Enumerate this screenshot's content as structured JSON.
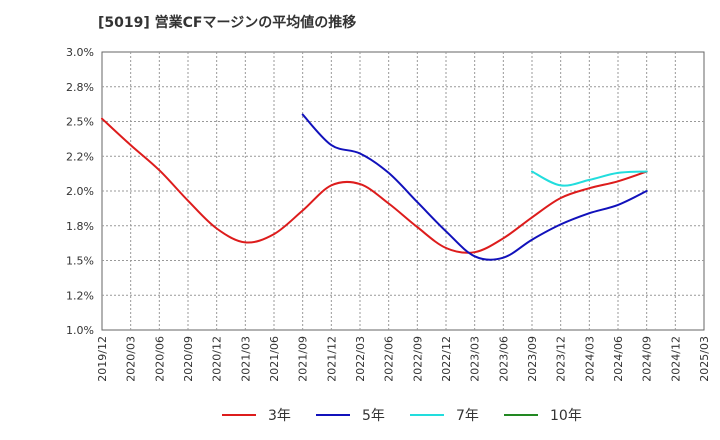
{
  "title": "[5019]  営業CFマージンの平均値の推移",
  "chart_data": {
    "type": "line",
    "title": "[5019]  営業CFマージンの平均値の推移",
    "xlabel": "",
    "ylabel": "",
    "ylim": [
      1.0,
      3.0
    ],
    "grid": true,
    "legend_position": "bottom",
    "y_ticks": [
      "1.0%",
      "1.2%",
      "1.5%",
      "1.8%",
      "2.0%",
      "2.2%",
      "2.5%",
      "2.8%",
      "3.0%"
    ],
    "y_tick_values": [
      1.0,
      1.25,
      1.5,
      1.75,
      2.0,
      2.25,
      2.5,
      2.75,
      3.0
    ],
    "x_ticks": [
      "2019/12",
      "2020/03",
      "2020/06",
      "2020/09",
      "2020/12",
      "2021/03",
      "2021/06",
      "2021/09",
      "2021/12",
      "2022/03",
      "2022/06",
      "2022/09",
      "2022/12",
      "2023/03",
      "2023/06",
      "2023/09",
      "2023/12",
      "2024/03",
      "2024/06",
      "2024/09",
      "2024/12",
      "2025/03"
    ],
    "series": [
      {
        "name": "3年",
        "color": "#dd1c1c",
        "points": [
          [
            "2019/12",
            2.52
          ],
          [
            "2020/03",
            2.33
          ],
          [
            "2020/06",
            2.15
          ],
          [
            "2020/09",
            1.93
          ],
          [
            "2020/12",
            1.73
          ],
          [
            "2021/03",
            1.63
          ],
          [
            "2021/06",
            1.69
          ],
          [
            "2021/09",
            1.86
          ],
          [
            "2021/12",
            2.04
          ],
          [
            "2022/03",
            2.05
          ],
          [
            "2022/06",
            1.91
          ],
          [
            "2022/09",
            1.74
          ],
          [
            "2022/12",
            1.59
          ],
          [
            "2023/03",
            1.56
          ],
          [
            "2023/06",
            1.66
          ],
          [
            "2023/09",
            1.81
          ],
          [
            "2023/12",
            1.95
          ],
          [
            "2024/03",
            2.02
          ],
          [
            "2024/06",
            2.07
          ],
          [
            "2024/09",
            2.14
          ]
        ]
      },
      {
        "name": "5年",
        "color": "#1111bb",
        "points": [
          [
            "2021/09",
            2.55
          ],
          [
            "2021/12",
            2.33
          ],
          [
            "2022/03",
            2.27
          ],
          [
            "2022/06",
            2.13
          ],
          [
            "2022/09",
            1.92
          ],
          [
            "2022/12",
            1.71
          ],
          [
            "2023/03",
            1.53
          ],
          [
            "2023/06",
            1.52
          ],
          [
            "2023/09",
            1.65
          ],
          [
            "2023/12",
            1.76
          ],
          [
            "2024/03",
            1.84
          ],
          [
            "2024/06",
            1.9
          ],
          [
            "2024/09",
            2.0
          ]
        ]
      },
      {
        "name": "7年",
        "color": "#22dddd",
        "points": [
          [
            "2023/09",
            2.14
          ],
          [
            "2023/12",
            2.04
          ],
          [
            "2024/03",
            2.08
          ],
          [
            "2024/06",
            2.13
          ],
          [
            "2024/09",
            2.14
          ]
        ]
      },
      {
        "name": "10年",
        "color": "#228822",
        "points": []
      }
    ]
  }
}
